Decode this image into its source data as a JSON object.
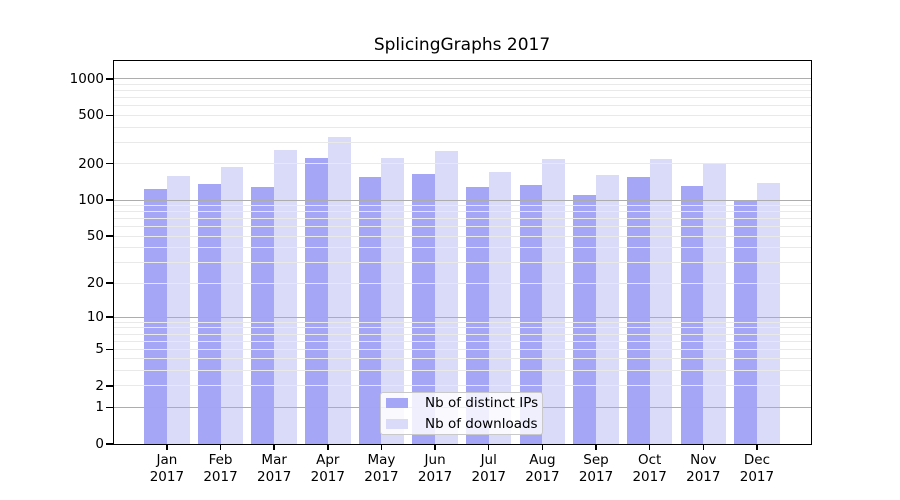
{
  "chart_data": {
    "type": "bar",
    "title": "SplicingGraphs 2017",
    "months": [
      "Jan",
      "Feb",
      "Mar",
      "Apr",
      "May",
      "Jun",
      "Jul",
      "Aug",
      "Sep",
      "Oct",
      "Nov",
      "Dec"
    ],
    "year": "2017",
    "series": [
      {
        "name": "Nb of distinct IPs",
        "color": "#a6a6f7",
        "values": [
          123,
          135,
          128,
          222,
          156,
          164,
          128,
          133,
          110,
          155,
          131,
          99
        ]
      },
      {
        "name": "Nb of downloads",
        "color": "#dadaf9",
        "values": [
          159,
          189,
          258,
          330,
          224,
          256,
          172,
          217,
          161,
          220,
          201,
          139
        ]
      }
    ],
    "y_scale": "log1p",
    "y_axis_top": 1400,
    "y_ticks": [
      0,
      1,
      2,
      5,
      10,
      20,
      50,
      100,
      200,
      500,
      1000
    ],
    "grid_major_values": [
      1,
      10,
      100,
      1000
    ],
    "grid_minor_values": [
      2,
      3,
      4,
      5,
      6,
      7,
      8,
      9,
      20,
      30,
      40,
      50,
      60,
      70,
      80,
      90,
      200,
      300,
      400,
      500,
      600,
      700,
      800,
      900
    ],
    "legend_position": "lower-center",
    "colors": {
      "grid_major": "#adadad",
      "grid_minor": "#e9e9e9",
      "spine": "#000000",
      "text": "#000000"
    }
  }
}
